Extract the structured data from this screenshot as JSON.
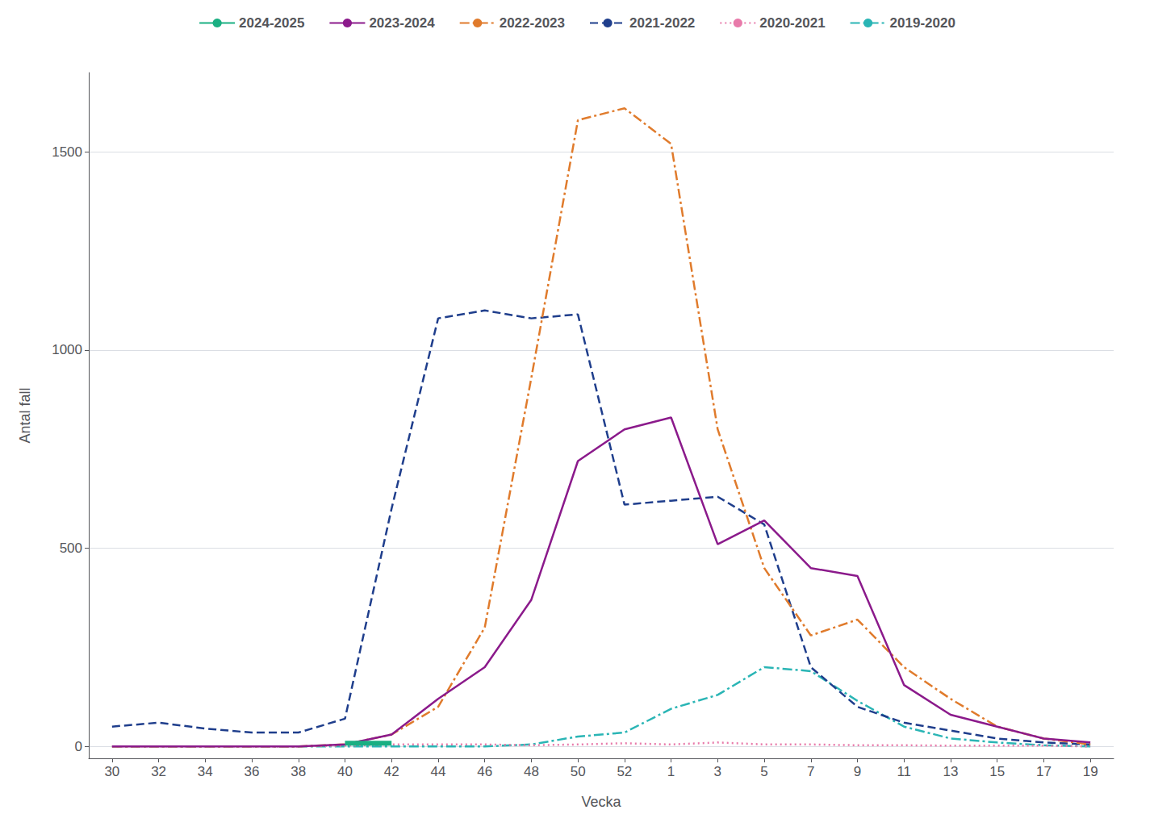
{
  "chart_data": {
    "type": "line",
    "xlabel": "Vecka",
    "ylabel": "Antal fall",
    "categories": [
      "30",
      "32",
      "34",
      "36",
      "38",
      "40",
      "42",
      "44",
      "46",
      "48",
      "50",
      "52",
      "1",
      "3",
      "5",
      "7",
      "9",
      "11",
      "13",
      "15",
      "17",
      "19"
    ],
    "series": [
      {
        "name": "2024-2025",
        "color": "#1aaf82",
        "line_style": "solid",
        "values": [
          null,
          null,
          null,
          null,
          null,
          8,
          8,
          null,
          null,
          null,
          null,
          null,
          null,
          null,
          null,
          null,
          null,
          null,
          null,
          null,
          null,
          null
        ]
      },
      {
        "name": "2023-2024",
        "color": "#8b1a8b",
        "line_style": "solid",
        "values": [
          0,
          0,
          0,
          0,
          0,
          5,
          30,
          120,
          200,
          370,
          720,
          800,
          830,
          510,
          570,
          450,
          430,
          155,
          80,
          50,
          20,
          10
        ]
      },
      {
        "name": "2022-2023",
        "color": "#e07b2c",
        "line_style": "dashdot",
        "values": [
          0,
          0,
          0,
          0,
          0,
          5,
          30,
          100,
          300,
          930,
          1580,
          1610,
          1520,
          800,
          450,
          280,
          320,
          200,
          120,
          50,
          20,
          5
        ]
      },
      {
        "name": "2021-2022",
        "color": "#1f3e8c",
        "line_style": "dashed",
        "values": [
          50,
          60,
          45,
          35,
          35,
          70,
          600,
          1080,
          1100,
          1080,
          1090,
          610,
          620,
          630,
          560,
          200,
          100,
          60,
          40,
          20,
          10,
          5
        ]
      },
      {
        "name": "2020-2021",
        "color": "#e87aaa",
        "line_style": "dotted",
        "values": [
          0,
          0,
          0,
          0,
          0,
          2,
          5,
          5,
          5,
          3,
          5,
          8,
          5,
          10,
          5,
          5,
          3,
          3,
          2,
          2,
          2,
          0
        ]
      },
      {
        "name": "2019-2020",
        "color": "#2ab5b5",
        "line_style": "dashdot",
        "values": [
          0,
          0,
          0,
          0,
          0,
          0,
          0,
          0,
          0,
          5,
          25,
          35,
          95,
          130,
          200,
          190,
          115,
          50,
          20,
          10,
          3,
          0
        ]
      }
    ],
    "ylim": [
      -30,
      1700
    ],
    "yticks": [
      0,
      500,
      1000,
      1500
    ],
    "grid": true,
    "legend": "top"
  }
}
